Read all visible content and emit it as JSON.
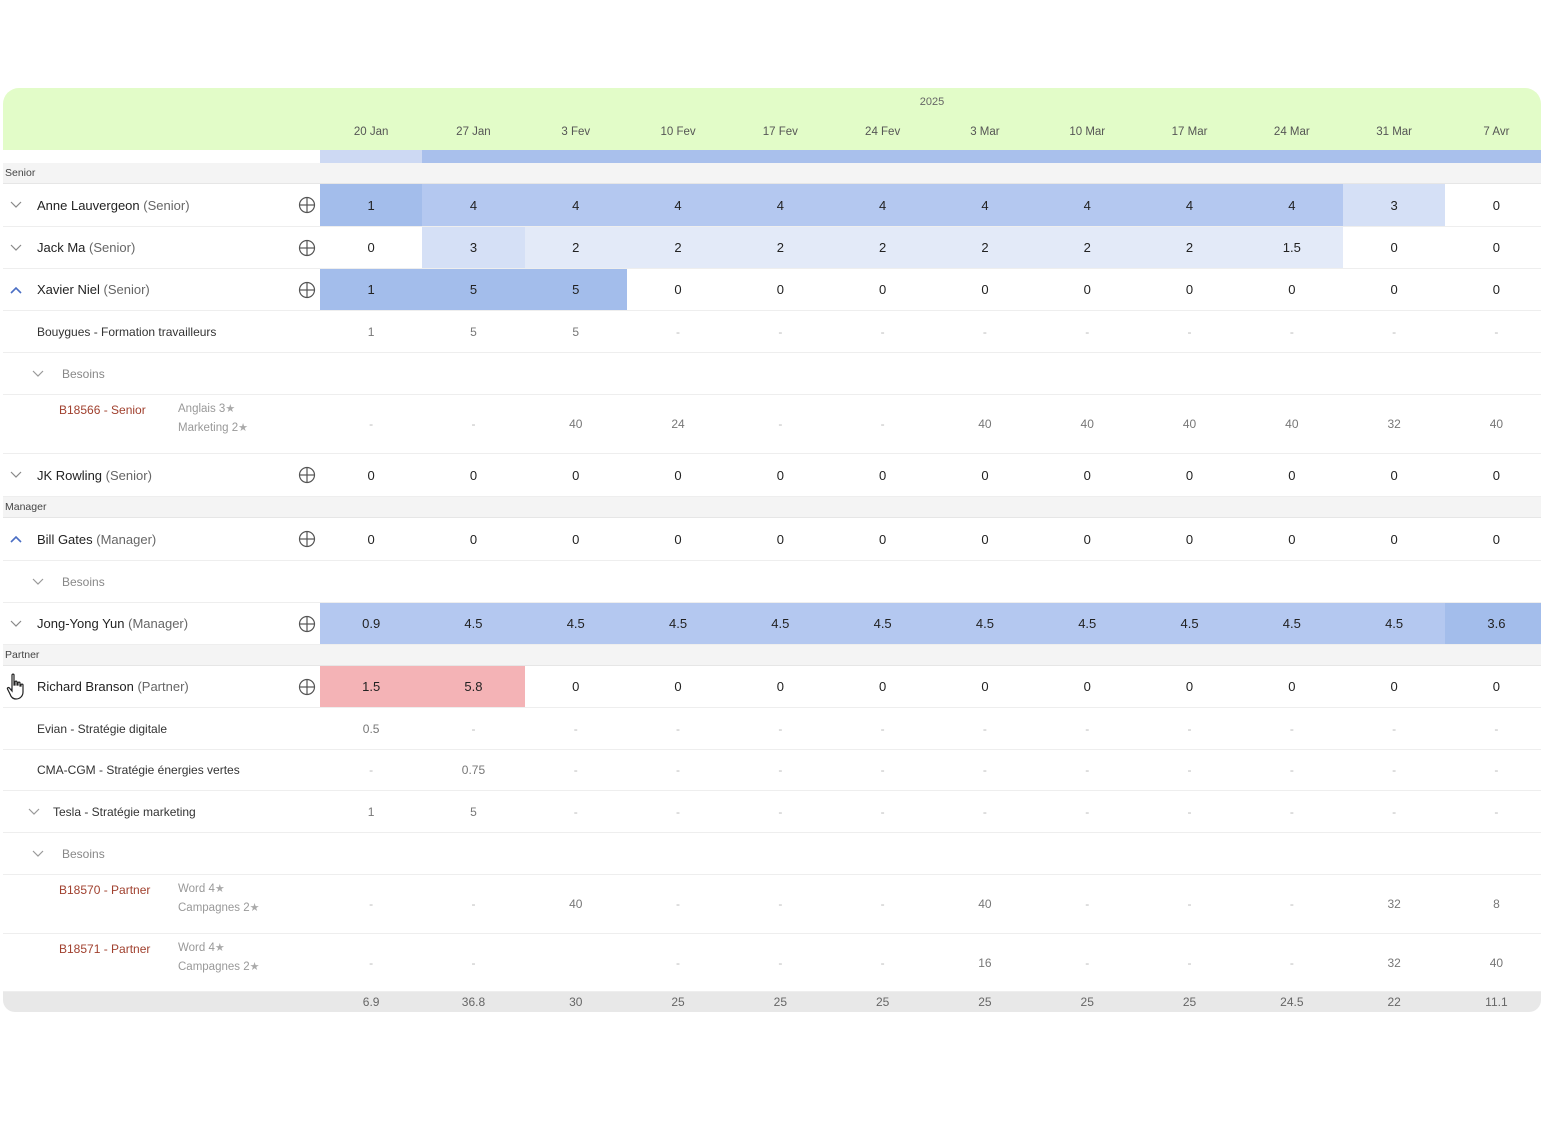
{
  "header": {
    "year": "2025",
    "weeks": [
      "20 Jan",
      "27 Jan",
      "3 Fev",
      "10 Fev",
      "17 Fev",
      "24 Fev",
      "3 Mar",
      "10 Mar",
      "17 Mar",
      "24 Mar",
      "31 Mar",
      "7 Avr"
    ]
  },
  "groups": {
    "senior": "Senior",
    "manager": "Manager",
    "partner": "Partner"
  },
  "people": {
    "anne": {
      "name": "Anne Lauvergeon",
      "role": "(Senior)",
      "values": [
        "1",
        "4",
        "4",
        "4",
        "4",
        "4",
        "4",
        "4",
        "4",
        "4",
        "3",
        "0"
      ]
    },
    "jack": {
      "name": "Jack Ma",
      "role": "(Senior)",
      "values": [
        "0",
        "3",
        "2",
        "2",
        "2",
        "2",
        "2",
        "2",
        "2",
        "1.5",
        "0",
        "0"
      ]
    },
    "xavier": {
      "name": "Xavier Niel",
      "role": "(Senior)",
      "values": [
        "1",
        "5",
        "5",
        "0",
        "0",
        "0",
        "0",
        "0",
        "0",
        "0",
        "0",
        "0"
      ]
    },
    "jk": {
      "name": "JK Rowling",
      "role": "(Senior)",
      "values": [
        "0",
        "0",
        "0",
        "0",
        "0",
        "0",
        "0",
        "0",
        "0",
        "0",
        "0",
        "0"
      ]
    },
    "bill": {
      "name": "Bill Gates",
      "role": "(Manager)",
      "values": [
        "0",
        "0",
        "0",
        "0",
        "0",
        "0",
        "0",
        "0",
        "0",
        "0",
        "0",
        "0"
      ]
    },
    "jong": {
      "name": "Jong-Yong Yun",
      "role": "(Manager)",
      "values": [
        "0.9",
        "4.5",
        "4.5",
        "4.5",
        "4.5",
        "4.5",
        "4.5",
        "4.5",
        "4.5",
        "4.5",
        "4.5",
        "3.6"
      ]
    },
    "richard": {
      "name": "Richard Branson",
      "role": "(Partner)",
      "values": [
        "1.5",
        "5.8",
        "0",
        "0",
        "0",
        "0",
        "0",
        "0",
        "0",
        "0",
        "0",
        "0"
      ]
    }
  },
  "projects": {
    "bouygues": {
      "label": "Bouygues - Formation travailleurs",
      "values": [
        "1",
        "5",
        "5",
        "-",
        "-",
        "-",
        "-",
        "-",
        "-",
        "-",
        "-",
        "-"
      ]
    },
    "evian": {
      "label": "Evian - Stratégie digitale",
      "values": [
        "0.5",
        "-",
        "-",
        "-",
        "-",
        "-",
        "-",
        "-",
        "-",
        "-",
        "-",
        "-"
      ]
    },
    "cma": {
      "label": "CMA-CGM - Stratégie énergies vertes",
      "values": [
        "-",
        "0.75",
        "-",
        "-",
        "-",
        "-",
        "-",
        "-",
        "-",
        "-",
        "-",
        "-"
      ]
    },
    "tesla": {
      "label": "Tesla - Stratégie marketing",
      "values": [
        "1",
        "5",
        "-",
        "-",
        "-",
        "-",
        "-",
        "-",
        "-",
        "-",
        "-",
        "-"
      ]
    }
  },
  "besoins_label": "Besoins",
  "needs": {
    "b18566": {
      "id": "B18566 - Senior",
      "skill1": "Anglais",
      "lvl1": "3",
      "skill2": "Marketing",
      "lvl2": "2",
      "values": [
        "-",
        "-",
        "40",
        "24",
        "-",
        "-",
        "40",
        "40",
        "40",
        "40",
        "32",
        "40"
      ]
    },
    "b18570": {
      "id": "B18570 - Partner",
      "skill1": "Word",
      "lvl1": "4",
      "skill2": "Campagnes",
      "lvl2": "2",
      "values": [
        "-",
        "-",
        "40",
        "-",
        "-",
        "-",
        "40",
        "-",
        "-",
        "-",
        "32",
        "8"
      ]
    },
    "b18571": {
      "id": "B18571 - Partner",
      "skill1": "Word",
      "lvl1": "4",
      "skill2": "Campagnes",
      "lvl2": "2",
      "values": [
        "-",
        "-",
        "",
        "-",
        "-",
        "-",
        "16",
        "-",
        "-",
        "-",
        "32",
        "40"
      ]
    }
  },
  "totals": [
    "6.9",
    "36.8",
    "30",
    "25",
    "25",
    "25",
    "25",
    "25",
    "25",
    "24.5",
    "22",
    "11.1"
  ],
  "colors": {
    "header_bg": "#e2fcc8",
    "heat_dark": "#a3bdeb",
    "heat_mid": "#b4c8f0",
    "heat_light": "#d5e0f6",
    "heat_vlight": "#e3eaf8",
    "over": "#f4b3b6",
    "need_id": "#a0402e"
  }
}
